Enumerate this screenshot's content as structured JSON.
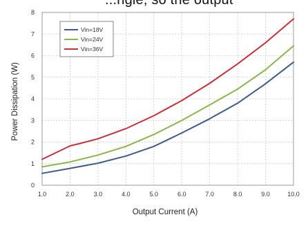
{
  "top_text_fragment": "...ngle, so the output",
  "chart_data": {
    "type": "line",
    "xlabel": "Output Current (A)",
    "ylabel": "Power Dissipation (W)",
    "xlim": [
      1.0,
      10.0
    ],
    "ylim": [
      0,
      8
    ],
    "x_ticks": [
      "1.0",
      "2.0",
      "3.0",
      "4.0",
      "5.0",
      "6.0",
      "7.0",
      "8.0",
      "9.0",
      "10.0"
    ],
    "y_ticks": [
      "0",
      "1",
      "2",
      "3",
      "4",
      "5",
      "6",
      "7",
      "8"
    ],
    "grid": true,
    "legend_position": "top-left",
    "series": [
      {
        "name": "Vin=18V",
        "color": "#3f5a87",
        "x": [
          1.0,
          2.0,
          3.0,
          4.0,
          5.0,
          6.0,
          7.0,
          8.0,
          9.0,
          10.0
        ],
        "y": [
          0.55,
          0.78,
          1.02,
          1.35,
          1.8,
          2.42,
          3.08,
          3.8,
          4.7,
          5.7
        ]
      },
      {
        "name": "Vin=24V",
        "color": "#8ab54a",
        "x": [
          1.0,
          2.0,
          3.0,
          4.0,
          5.0,
          6.0,
          7.0,
          8.0,
          9.0,
          10.0
        ],
        "y": [
          0.85,
          1.08,
          1.4,
          1.8,
          2.35,
          3.0,
          3.72,
          4.45,
          5.35,
          6.45
        ]
      },
      {
        "name": "Vin=36V",
        "color": "#c4303a",
        "x": [
          1.0,
          2.0,
          2.4,
          3.0,
          4.0,
          5.0,
          6.0,
          7.0,
          8.0,
          9.0,
          10.0
        ],
        "y": [
          1.2,
          1.82,
          1.95,
          2.15,
          2.62,
          3.22,
          3.92,
          4.72,
          5.62,
          6.6,
          7.7
        ]
      }
    ]
  }
}
